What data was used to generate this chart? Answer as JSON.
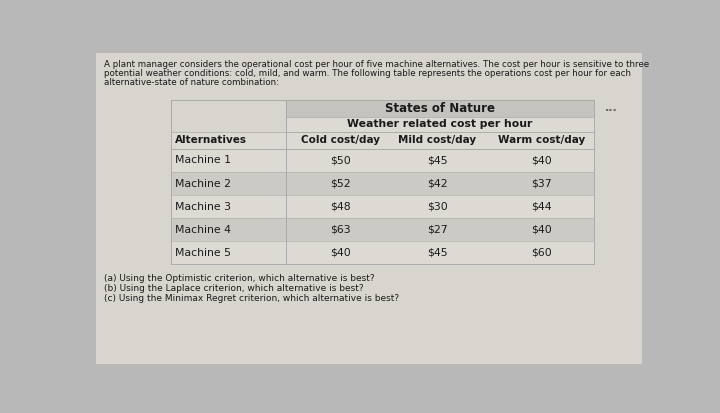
{
  "intro_text_lines": [
    "A plant manager considers the operational cost per hour of five machine alternatives. The cost per hour is sensitive to three",
    "potential weather conditions: cold, mild, and warm. The following table represents the operations cost per hour for each",
    "alternative-state of nature combination:"
  ],
  "table_header_top": "States of Nature",
  "table_header_sub": "Weather related cost per hour",
  "col_headers": [
    "Alternatives",
    "Cold cost/day",
    "Mild cost/day",
    "Warm cost/day"
  ],
  "rows": [
    [
      "Machine 1",
      "$50",
      "$45",
      "$40"
    ],
    [
      "Machine 2",
      "$52",
      "$42",
      "$37"
    ],
    [
      "Machine 3",
      "$48",
      "$30",
      "$44"
    ],
    [
      "Machine 4",
      "$63",
      "$27",
      "$40"
    ],
    [
      "Machine 5",
      "$40",
      "$45",
      "$60"
    ]
  ],
  "questions": [
    "(a) Using the Optimistic criterion, which alternative is best?",
    "(b) Using the Laplace criterion, which alternative is best?",
    "(c) Using the Minimax Regret criterion, which alternative is best?"
  ],
  "outer_bg": "#b8b8b8",
  "card_bg": "#d8d5cf",
  "table_header_bg": "#c5c3be",
  "table_body_bg": "#dddad4",
  "table_row_even": "#dddad4",
  "table_row_odd": "#cccac4",
  "text_color": "#1a1a1a",
  "dots_color": "#666666",
  "border_color": "#aaaaaa"
}
